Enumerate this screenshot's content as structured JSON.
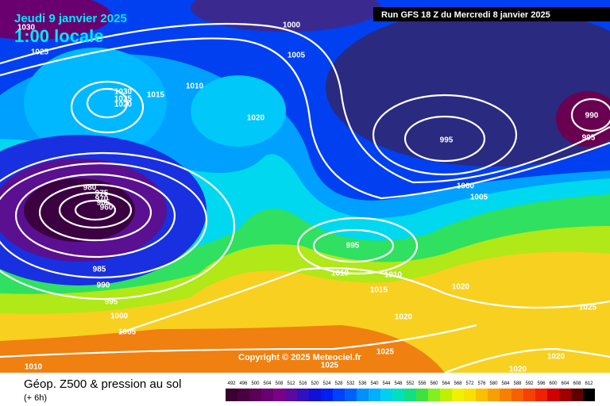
{
  "header": {
    "date": "Jeudi 9 janvier 2025",
    "time": "1:00 locale",
    "run": "Run GFS 18 Z du Mercredi 8 janvier 2025"
  },
  "copyright": "Copyright © 2025 Meteociel.fr",
  "footer": {
    "title": "Géop. Z500 & pression au sol",
    "step": "(+ 6h)"
  },
  "isobar_labels": [
    "1030",
    "1025",
    "1000",
    "1005",
    "1010",
    "1015",
    "1030",
    "1025",
    "1020",
    "1020",
    "995",
    "990",
    "995",
    "1000",
    "1005",
    "980",
    "975",
    "970",
    "965",
    "960",
    "995",
    "985",
    "990",
    "995",
    "1000",
    "1005",
    "1010",
    "1010",
    "1015",
    "1020",
    "1025",
    "1020",
    "1025",
    "1025",
    "1020",
    "1020",
    "1010"
  ],
  "colorbar": {
    "labels": [
      492,
      496,
      500,
      504,
      508,
      512,
      516,
      520,
      524,
      528,
      532,
      536,
      540,
      544,
      548,
      552,
      556,
      560,
      564,
      568,
      572,
      576,
      580,
      584,
      588,
      592,
      596,
      600,
      604,
      608,
      612
    ],
    "colors": [
      "#3a0030",
      "#4a0040",
      "#5a0058",
      "#6a0070",
      "#7a0088",
      "#5a0aa0",
      "#3010c0",
      "#1010d8",
      "#0020f0",
      "#0040ff",
      "#0060ff",
      "#0090ff",
      "#00b0ff",
      "#00d0f0",
      "#00e0c0",
      "#10e080",
      "#40e040",
      "#80f020",
      "#c0f000",
      "#f0f000",
      "#f8e000",
      "#f8c000",
      "#f8a000",
      "#f88000",
      "#f86000",
      "#f84000",
      "#f02000",
      "#d00000",
      "#a00000",
      "#600000",
      "#000000"
    ]
  }
}
